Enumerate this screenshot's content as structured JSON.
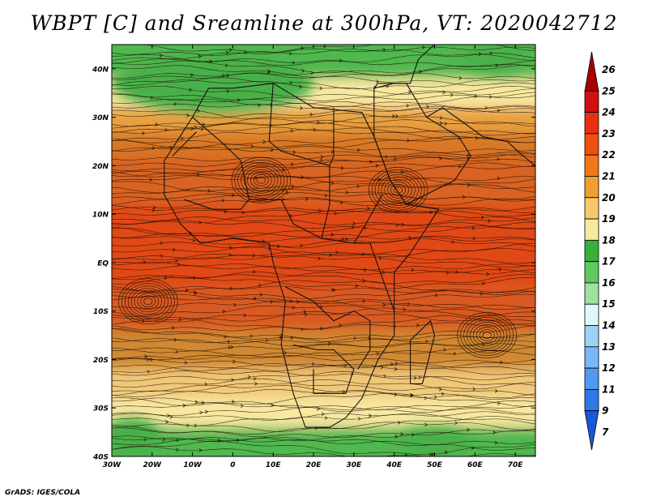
{
  "title": "WBPT [C] and Sreamline at 300hPa, VT: 2020042712",
  "footer": "GrADS: IGES/COLA",
  "colors": {
    "frame": "#000000",
    "coast": "#111111",
    "streamline": "#1a0a00"
  },
  "map": {
    "lon_range": [
      -30,
      75
    ],
    "lat_range": [
      -40,
      45
    ],
    "lon_ticks": [
      {
        "value": -30,
        "label": "30W"
      },
      {
        "value": -20,
        "label": "20W"
      },
      {
        "value": -10,
        "label": "10W"
      },
      {
        "value": 0,
        "label": "0"
      },
      {
        "value": 10,
        "label": "10E"
      },
      {
        "value": 20,
        "label": "20E"
      },
      {
        "value": 30,
        "label": "30E"
      },
      {
        "value": 40,
        "label": "40E"
      },
      {
        "value": 50,
        "label": "50E"
      },
      {
        "value": 60,
        "label": "60E"
      },
      {
        "value": 70,
        "label": "70E"
      }
    ],
    "lat_ticks": [
      {
        "value": 40,
        "label": "40N"
      },
      {
        "value": 30,
        "label": "30N"
      },
      {
        "value": 20,
        "label": "20N"
      },
      {
        "value": 10,
        "label": "10N"
      },
      {
        "value": 0,
        "label": "EQ"
      },
      {
        "value": -10,
        "label": "10S"
      },
      {
        "value": -20,
        "label": "20S"
      },
      {
        "value": -30,
        "label": "30S"
      },
      {
        "value": -40,
        "label": "40S"
      }
    ]
  },
  "colorbar": {
    "levels": [
      "26",
      "25",
      "24",
      "23",
      "22",
      "21",
      "20",
      "19",
      "18",
      "17",
      "16",
      "15",
      "14",
      "13",
      "12",
      "11",
      "9",
      "7"
    ],
    "colors": [
      "#a80000",
      "#d01010",
      "#e83010",
      "#f05010",
      "#f07818",
      "#f0a030",
      "#f8c868",
      "#f8e8a0",
      "#38b038",
      "#60c860",
      "#a0e0a0",
      "#e0f8f8",
      "#a0d0f8",
      "#78b8f8",
      "#5098f0",
      "#3078e8",
      "#1858d8"
    ]
  },
  "fields": {
    "band_lats": [
      45,
      38,
      32,
      27,
      22,
      12,
      -5,
      -14,
      -22,
      -28,
      -34,
      -40
    ],
    "band_colors": [
      "#50b850",
      "#f8e8a0",
      "#e8a040",
      "#d87828",
      "#d86420",
      "#e04818",
      "#d85a20",
      "#d08830",
      "#f0c878",
      "#f8e8a0",
      "#50b850"
    ],
    "green_patches": [
      {
        "lon": -5,
        "lat": 37,
        "rx": 25,
        "ry": 6
      },
      {
        "lon": -25,
        "lat": -36,
        "rx": 7,
        "ry": 4
      },
      {
        "lon": 50,
        "lat": -37,
        "rx": 9,
        "ry": 3
      },
      {
        "lon": 65,
        "lat": 42,
        "rx": 8,
        "ry": 3
      }
    ],
    "swirls": [
      {
        "lon": -21,
        "lat": -8
      },
      {
        "lon": 7,
        "lat": 17
      },
      {
        "lon": 41,
        "lat": 15
      },
      {
        "lon": 63,
        "lat": -15
      }
    ]
  },
  "countries": [
    [
      [
        -6,
        36
      ],
      [
        -10,
        30
      ],
      [
        -17,
        21
      ],
      [
        -17,
        14
      ],
      [
        -13,
        8
      ],
      [
        -8,
        4
      ],
      [
        0,
        5
      ],
      [
        9,
        4
      ],
      [
        10,
        0
      ],
      [
        13,
        -8
      ],
      [
        12,
        -17
      ],
      [
        15,
        -27
      ],
      [
        18,
        -34
      ],
      [
        24,
        -34
      ],
      [
        28,
        -32
      ],
      [
        32,
        -28
      ],
      [
        36,
        -20
      ],
      [
        40,
        -15
      ],
      [
        40,
        -10
      ],
      [
        40,
        -2
      ],
      [
        44,
        2
      ],
      [
        51,
        11
      ],
      [
        43,
        12
      ],
      [
        39,
        17
      ],
      [
        35,
        26
      ],
      [
        32,
        31
      ],
      [
        20,
        32
      ],
      [
        10,
        37
      ],
      [
        0,
        36
      ],
      [
        -6,
        36
      ]
    ],
    [
      [
        44,
        -25
      ],
      [
        47,
        -25
      ],
      [
        50,
        -15
      ],
      [
        49,
        -12
      ],
      [
        44,
        -16
      ],
      [
        44,
        -25
      ]
    ],
    [
      [
        35,
        31
      ],
      [
        35,
        36
      ],
      [
        36,
        37
      ],
      [
        43,
        37
      ],
      [
        48,
        30
      ],
      [
        56,
        26
      ],
      [
        59,
        22
      ],
      [
        55,
        17
      ],
      [
        43,
        12
      ],
      [
        39,
        17
      ],
      [
        35,
        26
      ],
      [
        35,
        31
      ]
    ],
    [
      [
        48,
        30
      ],
      [
        52,
        32
      ],
      [
        62,
        26
      ],
      [
        68,
        25
      ],
      [
        72,
        22
      ],
      [
        75,
        20
      ]
    ],
    [
      [
        -10,
        30
      ],
      [
        -3,
        25
      ],
      [
        2,
        21
      ]
    ],
    [
      [
        10,
        37
      ],
      [
        9,
        25
      ],
      [
        12,
        23
      ],
      [
        24,
        20
      ],
      [
        25,
        22
      ],
      [
        25,
        32
      ]
    ],
    [
      [
        2,
        21
      ],
      [
        4,
        13
      ],
      [
        12,
        13
      ],
      [
        15,
        8
      ],
      [
        22,
        5
      ],
      [
        30,
        4
      ],
      [
        33,
        8
      ],
      [
        37,
        14
      ]
    ],
    [
      [
        -12,
        13
      ],
      [
        -5,
        11
      ],
      [
        2,
        11
      ],
      [
        4,
        13
      ]
    ],
    [
      [
        13,
        -5
      ],
      [
        20,
        -8
      ],
      [
        25,
        -12
      ],
      [
        30,
        -10
      ],
      [
        34,
        -12
      ],
      [
        34,
        -18
      ],
      [
        31,
        -22
      ]
    ],
    [
      [
        15,
        -17
      ],
      [
        21,
        -18
      ],
      [
        25,
        -18
      ],
      [
        30,
        -22
      ],
      [
        28,
        -27
      ],
      [
        20,
        -27
      ],
      [
        20,
        -22
      ]
    ],
    [
      [
        30,
        4
      ],
      [
        34,
        4
      ],
      [
        37,
        -3
      ],
      [
        40,
        -10
      ]
    ],
    [
      [
        24,
        20
      ],
      [
        24,
        12
      ],
      [
        22,
        5
      ]
    ],
    [
      [
        35,
        36
      ],
      [
        40,
        37
      ],
      [
        44,
        37
      ],
      [
        46,
        42
      ],
      [
        50,
        45
      ]
    ],
    [
      [
        -15,
        22
      ],
      [
        -9,
        27
      ]
    ]
  ]
}
